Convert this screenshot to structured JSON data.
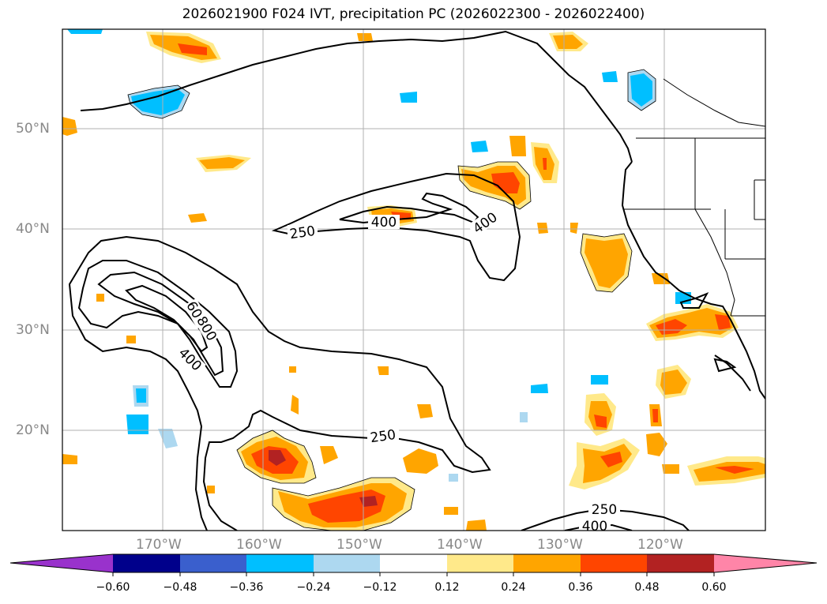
{
  "title": "2026021900 F024 IVT, precipitation PC (2026022300 - 2026022400)",
  "lat_labels": [
    "50°N",
    "40°N",
    "30°N",
    "20°N"
  ],
  "lon_labels": [
    "170°W",
    "160°W",
    "150°W",
    "140°W",
    "130°W",
    "120°W"
  ],
  "contour_labels": {
    "c250_north": "250",
    "c400_north_a": "400",
    "c400_north_b": "400",
    "c600": "600",
    "c800": "800",
    "c400_west": "400",
    "c250_south": "250",
    "c250_se": "250",
    "c400_se": "400"
  },
  "colorbar": {
    "ticks": [
      "−0.60",
      "−0.48",
      "−0.36",
      "−0.24",
      "−0.12",
      "0.12",
      "0.24",
      "0.36",
      "0.48",
      "0.60"
    ],
    "colors": [
      "#9932cc",
      "#00008b",
      "#3a5fcd",
      "#00bfff",
      "#add8f0",
      "#ffffff",
      "#ffe98a",
      "#ffa500",
      "#ff4500",
      "#b22222",
      "#ff85a8"
    ]
  }
}
